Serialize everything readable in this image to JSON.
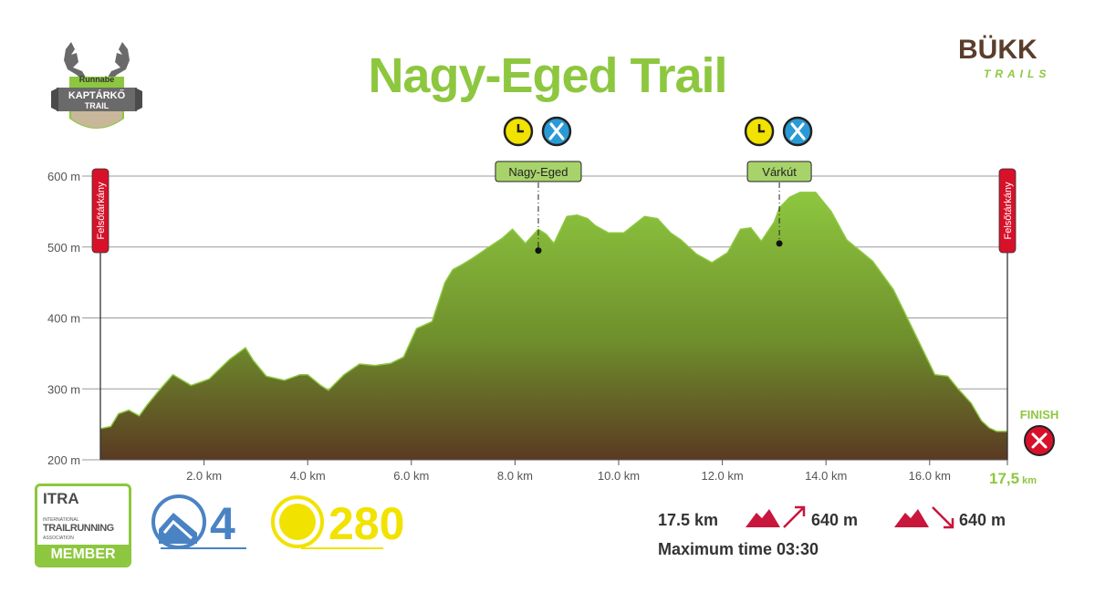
{
  "title": "Nagy-Eged Trail",
  "colors": {
    "title": "#8dc73f",
    "accent_green": "#8dc73f",
    "terrain_top": "#8dc73f",
    "terrain_bottom": "#5a3a22",
    "station_red": "#d7112a",
    "elevation_marker": "#c8163d",
    "itra_blue": "#4a83c4",
    "points_yellow": "#f2e200"
  },
  "logos": {
    "left": {
      "top_text": "Runnabe",
      "main_text": "KAPTÁRKŐ",
      "sub_text": "TRAIL"
    },
    "right": {
      "main_text": "BÜKK",
      "sub_text": "TRAILS"
    }
  },
  "chart_data": {
    "type": "area",
    "title": "Nagy-Eged Trail",
    "xlabel": "",
    "ylabel": "",
    "xlim": [
      0,
      17.5
    ],
    "ylim": [
      200,
      600
    ],
    "x_ticks": [
      2.0,
      4.0,
      6.0,
      8.0,
      10.0,
      12.0,
      14.0,
      16.0
    ],
    "x_tick_labels": [
      "2.0 km",
      "4.0 km",
      "6.0 km",
      "8.0 km",
      "10.0 km",
      "12.0 km",
      "14.0 km",
      "16.0 km"
    ],
    "y_ticks": [
      200,
      300,
      400,
      500,
      600
    ],
    "y_tick_labels": [
      "200 m",
      "300 m",
      "400 m",
      "500 m",
      "600 m"
    ],
    "grid": true,
    "end_label": {
      "value": "17,5",
      "unit": "km"
    },
    "series": [
      {
        "x": [
          0,
          0.2,
          0.35,
          0.55,
          0.75,
          0.9,
          1.1,
          1.4,
          1.75,
          1.95,
          2.1,
          2.3,
          2.5,
          2.8,
          2.95,
          3.2,
          3.55,
          3.85,
          4.0,
          4.25,
          4.4,
          4.7,
          5.0,
          5.3,
          5.6,
          5.85,
          6.1,
          6.4,
          6.65,
          6.8,
          7.0,
          7.2,
          7.5,
          7.75,
          7.95,
          8.2,
          8.45,
          8.6,
          8.75,
          9.0,
          9.2,
          9.4,
          9.55,
          9.8,
          10.1,
          10.5,
          10.75,
          11.0,
          11.2,
          11.5,
          11.8,
          12.1,
          12.35,
          12.55,
          12.75,
          13.0,
          13.1,
          13.3,
          13.5,
          13.8,
          14.1,
          14.4,
          14.9,
          15.3,
          15.7,
          16.1,
          16.35,
          16.55,
          16.8,
          17.0,
          17.15,
          17.3,
          17.5
        ],
        "y": [
          244,
          247,
          265,
          270,
          262,
          277,
          295,
          320,
          305,
          310,
          314,
          328,
          342,
          358,
          340,
          318,
          312,
          320,
          320,
          305,
          298,
          320,
          335,
          333,
          336,
          345,
          385,
          395,
          450,
          468,
          476,
          485,
          500,
          512,
          525,
          505,
          525,
          518,
          505,
          543,
          545,
          540,
          530,
          520,
          520,
          543,
          540,
          520,
          510,
          490,
          478,
          492,
          525,
          527,
          508,
          535,
          555,
          570,
          577,
          577,
          550,
          510,
          480,
          440,
          380,
          320,
          318,
          300,
          280,
          255,
          245,
          240,
          240
        ]
      }
    ],
    "stations": [
      {
        "name": "Nagy-Eged",
        "x": 8.45,
        "y": 495
      },
      {
        "name": "Várkút",
        "x": 13.1,
        "y": 505
      }
    ],
    "start_label": "Felsőtárkány",
    "finish_label": "Felsőtárkány",
    "finish_text": "FINISH"
  },
  "footer": {
    "itra_top": "ITRA",
    "itra_line1": "INTERNATIONAL",
    "itra_line2": "TRAILRUNNING",
    "itra_line3": "ASSOCIATION",
    "itra_band": "MEMBER",
    "itra_points": "4",
    "utmb_points": "280",
    "distance": "17.5 km",
    "ascent": "640 m",
    "descent": "640 m",
    "max_time": "Maximum time 03:30"
  }
}
